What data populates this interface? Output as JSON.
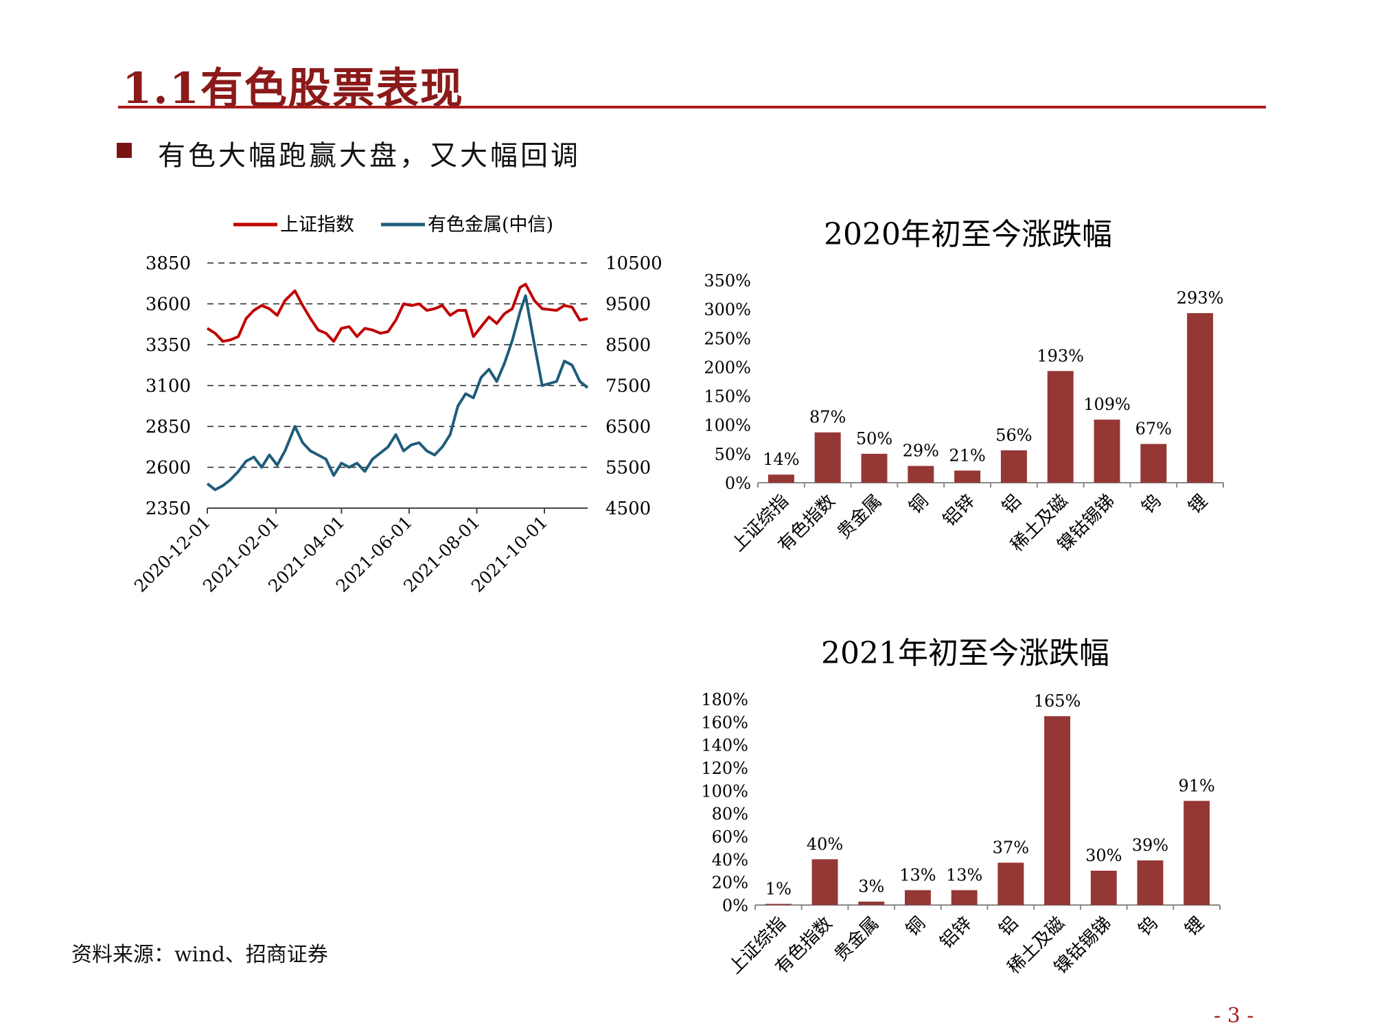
{
  "page": {
    "title": "1.1有色股票表现",
    "bullet": "有色大幅跑赢大盘，又大幅回调",
    "source": "资料来源：wind、招商证券",
    "page_number": "- 3 -"
  },
  "colors": {
    "title": "#8b1a1a",
    "rule": "#a81c1c",
    "index_line": "#c00000",
    "metal_line": "#1f5c7a",
    "bar": "#953735"
  },
  "chart_data": [
    {
      "type": "line",
      "legend": [
        "上证指数",
        "有色金属(中信)"
      ],
      "legend_position": "top",
      "grid": true,
      "x_ticks": [
        "2020-12-01",
        "2021-02-01",
        "2021-04-01",
        "2021-06-01",
        "2021-08-01",
        "2021-10-01"
      ],
      "left_axis": {
        "ylim": [
          2350,
          3850
        ],
        "ticks": [
          3850,
          3600,
          3350,
          3100,
          2850,
          2600,
          2350
        ]
      },
      "right_axis": {
        "ylim": [
          4500,
          10500
        ],
        "ticks": [
          10500,
          9500,
          8500,
          7500,
          6500,
          5500,
          4500
        ]
      },
      "series": [
        {
          "name": "上证指数",
          "axis": "left",
          "points": [
            [
              "2020-12-01",
              3450
            ],
            [
              "2020-12-08",
              3420
            ],
            [
              "2020-12-15",
              3370
            ],
            [
              "2020-12-22",
              3380
            ],
            [
              "2020-12-29",
              3400
            ],
            [
              "2021-01-05",
              3510
            ],
            [
              "2021-01-12",
              3560
            ],
            [
              "2021-01-19",
              3590
            ],
            [
              "2021-01-26",
              3570
            ],
            [
              "2021-02-02",
              3530
            ],
            [
              "2021-02-09",
              3620
            ],
            [
              "2021-02-18",
              3680
            ],
            [
              "2021-02-25",
              3590
            ],
            [
              "2021-03-04",
              3510
            ],
            [
              "2021-03-11",
              3440
            ],
            [
              "2021-03-18",
              3420
            ],
            [
              "2021-03-25",
              3370
            ],
            [
              "2021-04-01",
              3450
            ],
            [
              "2021-04-08",
              3460
            ],
            [
              "2021-04-15",
              3400
            ],
            [
              "2021-04-22",
              3450
            ],
            [
              "2021-04-29",
              3440
            ],
            [
              "2021-05-06",
              3420
            ],
            [
              "2021-05-13",
              3430
            ],
            [
              "2021-05-20",
              3500
            ],
            [
              "2021-05-27",
              3600
            ],
            [
              "2021-06-03",
              3590
            ],
            [
              "2021-06-10",
              3600
            ],
            [
              "2021-06-17",
              3560
            ],
            [
              "2021-06-24",
              3570
            ],
            [
              "2021-07-01",
              3590
            ],
            [
              "2021-07-08",
              3530
            ],
            [
              "2021-07-15",
              3560
            ],
            [
              "2021-07-22",
              3560
            ],
            [
              "2021-07-29",
              3400
            ],
            [
              "2021-08-05",
              3460
            ],
            [
              "2021-08-12",
              3520
            ],
            [
              "2021-08-19",
              3480
            ],
            [
              "2021-08-26",
              3540
            ],
            [
              "2021-09-02",
              3570
            ],
            [
              "2021-09-09",
              3700
            ],
            [
              "2021-09-14",
              3720
            ],
            [
              "2021-09-22",
              3620
            ],
            [
              "2021-09-29",
              3570
            ],
            [
              "2021-10-12",
              3560
            ],
            [
              "2021-10-19",
              3590
            ],
            [
              "2021-10-26",
              3580
            ],
            [
              "2021-11-02",
              3500
            ],
            [
              "2021-11-09",
              3510
            ]
          ]
        },
        {
          "name": "有色金属(中信)",
          "axis": "right",
          "points": [
            [
              "2020-12-01",
              5100
            ],
            [
              "2020-12-08",
              4950
            ],
            [
              "2020-12-15",
              5050
            ],
            [
              "2020-12-22",
              5200
            ],
            [
              "2020-12-29",
              5400
            ],
            [
              "2021-01-05",
              5650
            ],
            [
              "2021-01-12",
              5750
            ],
            [
              "2021-01-19",
              5500
            ],
            [
              "2021-01-26",
              5800
            ],
            [
              "2021-02-02",
              5550
            ],
            [
              "2021-02-09",
              5900
            ],
            [
              "2021-02-18",
              6500
            ],
            [
              "2021-02-25",
              6100
            ],
            [
              "2021-03-04",
              5900
            ],
            [
              "2021-03-11",
              5800
            ],
            [
              "2021-03-18",
              5700
            ],
            [
              "2021-03-25",
              5300
            ],
            [
              "2021-04-01",
              5600
            ],
            [
              "2021-04-08",
              5500
            ],
            [
              "2021-04-15",
              5600
            ],
            [
              "2021-04-22",
              5400
            ],
            [
              "2021-04-29",
              5700
            ],
            [
              "2021-05-06",
              5850
            ],
            [
              "2021-05-13",
              6000
            ],
            [
              "2021-05-20",
              6300
            ],
            [
              "2021-05-27",
              5900
            ],
            [
              "2021-06-03",
              6050
            ],
            [
              "2021-06-10",
              6100
            ],
            [
              "2021-06-17",
              5900
            ],
            [
              "2021-06-24",
              5800
            ],
            [
              "2021-07-01",
              6000
            ],
            [
              "2021-07-08",
              6300
            ],
            [
              "2021-07-15",
              7000
            ],
            [
              "2021-07-22",
              7300
            ],
            [
              "2021-07-29",
              7200
            ],
            [
              "2021-08-05",
              7700
            ],
            [
              "2021-08-12",
              7900
            ],
            [
              "2021-08-19",
              7600
            ],
            [
              "2021-08-26",
              8050
            ],
            [
              "2021-09-02",
              8600
            ],
            [
              "2021-09-09",
              9300
            ],
            [
              "2021-09-14",
              9700
            ],
            [
              "2021-09-22",
              8500
            ],
            [
              "2021-09-29",
              7500
            ],
            [
              "2021-10-12",
              7600
            ],
            [
              "2021-10-19",
              8100
            ],
            [
              "2021-10-26",
              8000
            ],
            [
              "2021-11-02",
              7600
            ],
            [
              "2021-11-09",
              7450
            ]
          ]
        }
      ]
    },
    {
      "type": "bar",
      "title": "2020年初至今涨跌幅",
      "categories": [
        "上证综指",
        "有色指数",
        "贵金属",
        "铜",
        "铝锌",
        "铝",
        "稀土及磁",
        "镍钴锡锑",
        "钨",
        "锂"
      ],
      "values": [
        14,
        87,
        50,
        29,
        21,
        56,
        193,
        109,
        67,
        293
      ],
      "value_labels": [
        "14%",
        "87%",
        "50%",
        "29%",
        "21%",
        "56%",
        "193%",
        "109%",
        "67%",
        "293%"
      ],
      "ylim": [
        0,
        350
      ],
      "y_ticks": [
        "0%",
        "50%",
        "100%",
        "150%",
        "200%",
        "250%",
        "300%",
        "350%"
      ]
    },
    {
      "type": "bar",
      "title": "2021年初至今涨跌幅",
      "categories": [
        "上证综指",
        "有色指数",
        "贵金属",
        "铜",
        "铝锌",
        "铝",
        "稀土及磁",
        "镍钴锡锑",
        "钨",
        "锂"
      ],
      "values": [
        1,
        40,
        3,
        13,
        13,
        37,
        165,
        30,
        39,
        91
      ],
      "value_labels": [
        "1%",
        "40%",
        "3%",
        "13%",
        "13%",
        "37%",
        "165%",
        "30%",
        "39%",
        "91%"
      ],
      "ylim": [
        0,
        180
      ],
      "y_ticks": [
        "0%",
        "20%",
        "40%",
        "60%",
        "80%",
        "100%",
        "120%",
        "140%",
        "160%",
        "180%"
      ]
    }
  ]
}
